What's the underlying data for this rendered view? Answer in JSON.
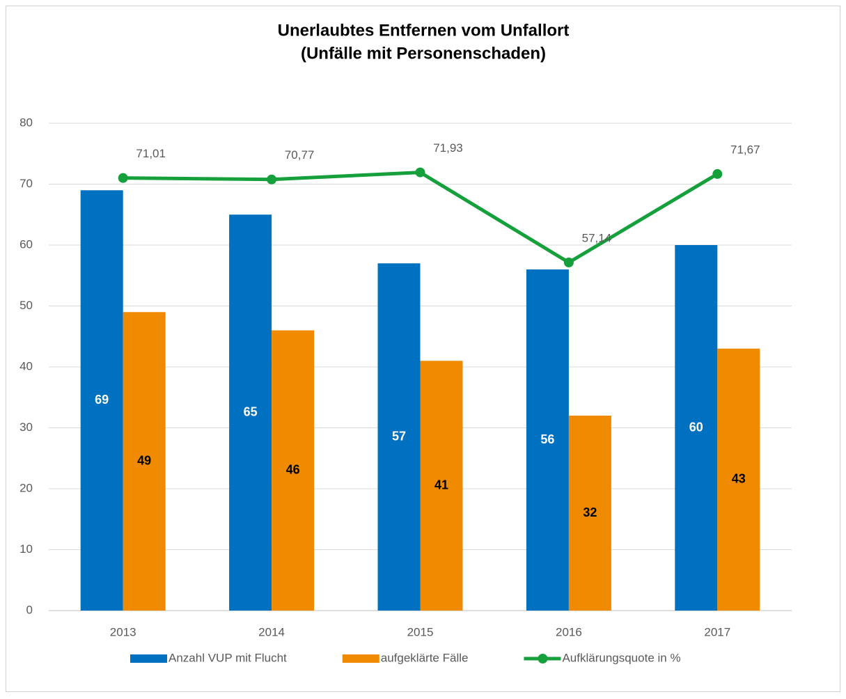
{
  "chart_data": {
    "type": "bar",
    "title": "Unerlaubtes Entfernen vom Unfallort",
    "subtitle": "(Unfälle mit Personenschaden)",
    "categories": [
      "2013",
      "2014",
      "2015",
      "2016",
      "2017"
    ],
    "series": [
      {
        "name": "Anzahl VUP mit Flucht",
        "type": "bar",
        "color": "#0070c0",
        "label_color": "#ffffff",
        "values": [
          69,
          65,
          57,
          56,
          60
        ]
      },
      {
        "name": "aufgeklärte Fälle",
        "type": "bar",
        "color": "#f08a00",
        "label_color": "#000000",
        "values": [
          49,
          46,
          41,
          32,
          43
        ]
      },
      {
        "name": "Aufklärungsquote in %",
        "type": "line",
        "color": "#16a03c",
        "values": [
          71.01,
          70.77,
          71.93,
          57.14,
          71.67
        ],
        "value_labels": [
          "71,01",
          "70,77",
          "71,93",
          "57,14",
          "71,67"
        ]
      }
    ],
    "ylim": [
      0,
      80
    ],
    "yticks": [
      0,
      10,
      20,
      30,
      40,
      50,
      60,
      70,
      80
    ],
    "grid": true,
    "legend": "bottom"
  }
}
